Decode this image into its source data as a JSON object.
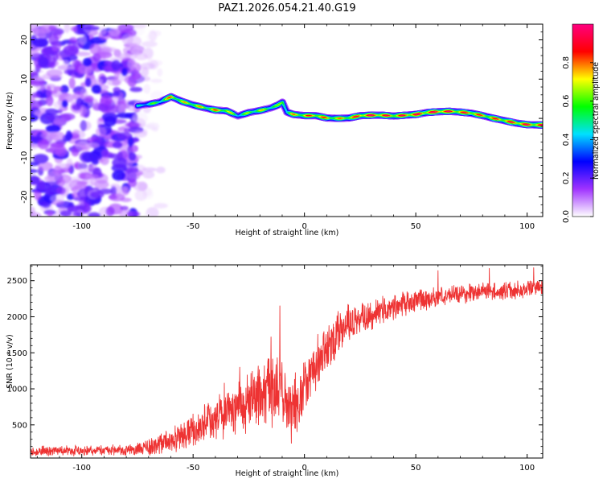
{
  "chart_data": [
    {
      "type": "heatmap",
      "title": "PAZ1.2026.054.21.40.G19",
      "xlabel": "Height of straight line (km)",
      "ylabel": "Frequency (Hz)",
      "xlim": [
        -123,
        107
      ],
      "ylim": [
        -25,
        24
      ],
      "xticks": [
        -100,
        -50,
        0,
        50,
        100
      ],
      "yticks": [
        -20,
        -10,
        0,
        10,
        20
      ],
      "colorbar": {
        "label": "Normalized spectral amplitude",
        "range": [
          0,
          1
        ],
        "ticks": [
          0.0,
          0.2,
          0.4,
          0.6,
          0.8
        ],
        "tick_labels": [
          "0.0",
          "0.2",
          "0.4",
          "0.6",
          "0.8"
        ],
        "colors": [
          "#ffffff",
          "#a033ff",
          "#0000ff",
          "#00e0ff",
          "#00ff00",
          "#ffff00",
          "#ff0000",
          "#ff0080"
        ]
      },
      "noise_region": {
        "x_range": [
          -123,
          -75
        ],
        "freq_range": [
          -25,
          24
        ],
        "amplitude_approx": 0.15
      },
      "ridge": {
        "x": [
          -75,
          -70,
          -65,
          -60,
          -55,
          -50,
          -45,
          -40,
          -35,
          -30,
          -25,
          -20,
          -15,
          -12,
          -10,
          -8,
          -5,
          0,
          5,
          10,
          15,
          20,
          25,
          30,
          35,
          40,
          45,
          50,
          55,
          60,
          65,
          70,
          75,
          80,
          85,
          90,
          95,
          100,
          107
        ],
        "freq": [
          3.2,
          3.6,
          4.2,
          5.5,
          4.3,
          3.4,
          2.7,
          2.1,
          1.9,
          0.6,
          1.5,
          2.0,
          2.7,
          3.4,
          4.1,
          1.6,
          1.0,
          0.7,
          0.7,
          0.1,
          0.0,
          0.1,
          0.7,
          0.8,
          0.8,
          0.6,
          0.8,
          1.0,
          1.5,
          1.7,
          1.8,
          1.6,
          1.3,
          0.7,
          0.0,
          -0.6,
          -1.2,
          -1.6,
          -1.7
        ],
        "amplitude": [
          0.45,
          0.55,
          0.6,
          0.8,
          0.7,
          0.75,
          0.7,
          0.8,
          0.75,
          0.55,
          0.65,
          0.7,
          0.65,
          0.6,
          0.7,
          0.6,
          0.75,
          0.8,
          0.85,
          0.8,
          0.75,
          0.8,
          0.9,
          0.95,
          0.9,
          0.85,
          0.9,
          0.95,
          0.9,
          0.95,
          0.9,
          0.85,
          0.9,
          0.8,
          0.85,
          0.85,
          0.9,
          0.9,
          0.9
        ]
      }
    },
    {
      "type": "line",
      "xlabel": "Height of straight line (km)",
      "ylabel": "SNR (10 * v/v)",
      "xlim": [
        -123,
        107
      ],
      "ylim": [
        40,
        2720
      ],
      "xticks": [
        -100,
        -50,
        0,
        50,
        100
      ],
      "yticks": [
        500,
        1000,
        1500,
        2000,
        2500
      ],
      "color": "#ee3333",
      "series": [
        {
          "name": "SNR",
          "x": [
            -123,
            -110,
            -100,
            -90,
            -80,
            -75,
            -70,
            -65,
            -60,
            -55,
            -50,
            -45,
            -40,
            -35,
            -30,
            -25,
            -20,
            -15,
            -12,
            -10,
            -8,
            -5,
            0,
            5,
            10,
            15,
            20,
            25,
            30,
            35,
            40,
            45,
            50,
            55,
            60,
            65,
            70,
            75,
            80,
            85,
            90,
            95,
            100,
            107
          ],
          "y": [
            130,
            140,
            140,
            145,
            150,
            160,
            190,
            230,
            280,
            340,
            410,
            490,
            580,
            680,
            740,
            800,
            900,
            920,
            940,
            1000,
            650,
            750,
            1000,
            1300,
            1550,
            1750,
            1900,
            1980,
            2030,
            2080,
            2130,
            2180,
            2220,
            2250,
            2280,
            2300,
            2310,
            2330,
            2350,
            2350,
            2360,
            2360,
            2390,
            2420
          ],
          "noise_amplitude": [
            55,
            60,
            60,
            60,
            60,
            70,
            90,
            110,
            140,
            170,
            200,
            220,
            260,
            290,
            320,
            340,
            380,
            400,
            400,
            420,
            380,
            360,
            330,
            300,
            260,
            240,
            210,
            180,
            160,
            150,
            140,
            130,
            120,
            120,
            110,
            110,
            110,
            110,
            100,
            100,
            100,
            100,
            100,
            100
          ],
          "spikes": [
            {
              "x": -11,
              "y": 2150
            },
            {
              "x": -36,
              "y": 1080
            },
            {
              "x": -29,
              "y": 1300
            },
            {
              "x": -15,
              "y": 1720
            },
            {
              "x": 60,
              "y": 2640
            },
            {
              "x": 83,
              "y": 2670
            },
            {
              "x": 103,
              "y": 2680
            }
          ]
        }
      ]
    }
  ]
}
